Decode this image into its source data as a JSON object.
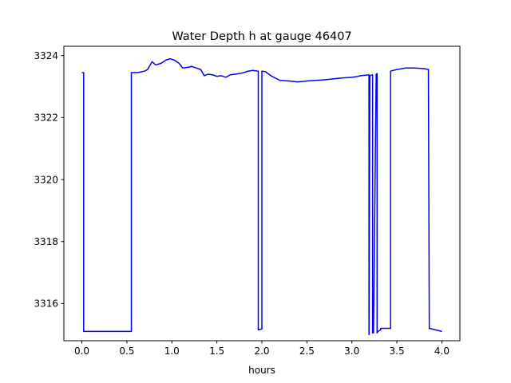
{
  "chart_data": {
    "type": "line",
    "title": "Water Depth h at gauge 46407",
    "xlabel": "hours",
    "ylabel": "",
    "xlim": [
      -0.2,
      4.2
    ],
    "ylim": [
      3314.8,
      3324.3
    ],
    "xticks": [
      0.0,
      0.5,
      1.0,
      1.5,
      2.0,
      2.5,
      3.0,
      3.5,
      4.0
    ],
    "xtick_labels": [
      "0.0",
      "0.5",
      "1.0",
      "1.5",
      "2.0",
      "2.5",
      "3.0",
      "3.5",
      "4.0"
    ],
    "yticks": [
      3316,
      3318,
      3320,
      3322,
      3324
    ],
    "ytick_labels": [
      "3316",
      "3318",
      "3320",
      "3322",
      "3324"
    ],
    "grid": false,
    "colors": {
      "line": "#0000ff",
      "axes": "#000000",
      "background": "#ffffff"
    },
    "series": [
      {
        "x": [
          0.0,
          0.02,
          0.02,
          0.55,
          0.55,
          0.62,
          0.7,
          0.73,
          0.78,
          0.82,
          0.88,
          0.93,
          0.98,
          1.03,
          1.08,
          1.12,
          1.18,
          1.22,
          1.27,
          1.32,
          1.36,
          1.4,
          1.45,
          1.5,
          1.55,
          1.6,
          1.65,
          1.7,
          1.75,
          1.8,
          1.85,
          1.9,
          1.95,
          1.96,
          1.96,
          2.0,
          2.0,
          2.04,
          2.1,
          2.2,
          2.3,
          2.4,
          2.5,
          2.6,
          2.7,
          2.8,
          2.9,
          3.0,
          3.05,
          3.1,
          3.19,
          3.19,
          3.19,
          3.2,
          3.23,
          3.23,
          3.24,
          3.27,
          3.28,
          3.28,
          3.29,
          3.32,
          3.32,
          3.43,
          3.43,
          3.5,
          3.6,
          3.7,
          3.8,
          3.85,
          3.86,
          4.0
        ],
        "y": [
          3323.45,
          3323.45,
          3315.1,
          3315.1,
          3323.45,
          3323.45,
          3323.5,
          3323.55,
          3323.8,
          3323.7,
          3323.75,
          3323.85,
          3323.9,
          3323.85,
          3323.75,
          3323.6,
          3323.62,
          3323.65,
          3323.6,
          3323.55,
          3323.35,
          3323.4,
          3323.38,
          3323.33,
          3323.35,
          3323.3,
          3323.38,
          3323.4,
          3323.42,
          3323.45,
          3323.5,
          3323.52,
          3323.5,
          3323.5,
          3315.15,
          3315.18,
          3323.5,
          3323.48,
          3323.35,
          3323.2,
          3323.18,
          3323.15,
          3323.18,
          3323.2,
          3323.22,
          3323.25,
          3323.28,
          3323.3,
          3323.32,
          3323.35,
          3323.38,
          3315.0,
          3315.0,
          3323.35,
          3323.38,
          3315.05,
          3315.05,
          3323.4,
          3323.42,
          3315.05,
          3315.1,
          3315.15,
          3315.2,
          3315.2,
          3323.5,
          3323.55,
          3323.6,
          3323.6,
          3323.58,
          3323.55,
          3315.2,
          3315.1
        ]
      }
    ]
  }
}
